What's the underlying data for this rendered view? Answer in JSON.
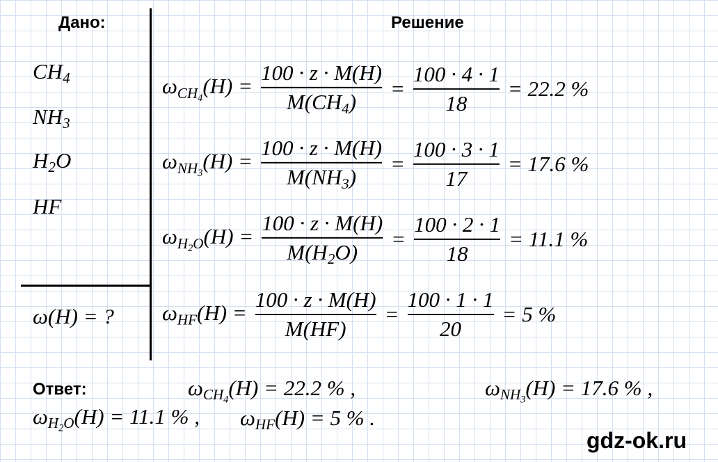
{
  "given": {
    "title": "Дано:",
    "substances": [
      [
        "CH",
        "4"
      ],
      [
        "NH",
        "3"
      ],
      [
        "H",
        "2",
        "O"
      ],
      [
        "HF"
      ]
    ],
    "find": "ω(H) = ?"
  },
  "omega": "ω",
  "solution": {
    "title": "Решение",
    "rows": [
      {
        "sub": [
          "CH",
          "4"
        ],
        "lhs": "(H) =",
        "num": "100 · z · M(H)",
        "den": [
          "M(CH",
          "4",
          ")"
        ],
        "eq": "=",
        "num2": "100 · 4 · 1",
        "den2": "18",
        "result": "= 22.2 %"
      },
      {
        "sub": [
          "NH",
          "3"
        ],
        "lhs": "(H) =",
        "num": "100 · z · M(H)",
        "den": [
          "M(NH",
          "3",
          ")"
        ],
        "eq": "=",
        "num2": "100 · 3 · 1",
        "den2": "17",
        "result": "= 17.6 %"
      },
      {
        "sub": [
          "H",
          "2",
          "O"
        ],
        "lhs": "(H) =",
        "num": "100 · z · M(H)",
        "den": [
          "M(H",
          "2",
          "O)"
        ],
        "eq": "=",
        "num2": "100 · 2 · 1",
        "den2": "18",
        "result": "= 11.1 %"
      },
      {
        "sub": [
          "HF"
        ],
        "lhs": "(H) =",
        "num": "100 · z · M(H)",
        "den": [
          "M(HF)"
        ],
        "eq": "=",
        "num2": "100 · 1 · 1",
        "den2": "20",
        "result": "= 5 %"
      }
    ]
  },
  "answer": {
    "label": "Ответ:",
    "items": [
      {
        "sub": [
          "CH",
          "4"
        ],
        "text": "(H) = 22.2 % ,"
      },
      {
        "sub": [
          "NH",
          "3"
        ],
        "text": "(H) = 17.6 % ,"
      },
      {
        "sub": [
          "H",
          "2",
          "O"
        ],
        "text": "(H) = 11.1 % ,"
      },
      {
        "sub": [
          "HF"
        ],
        "text": "(H) = 5 % ."
      }
    ]
  },
  "watermark": "gdz-ok.ru"
}
